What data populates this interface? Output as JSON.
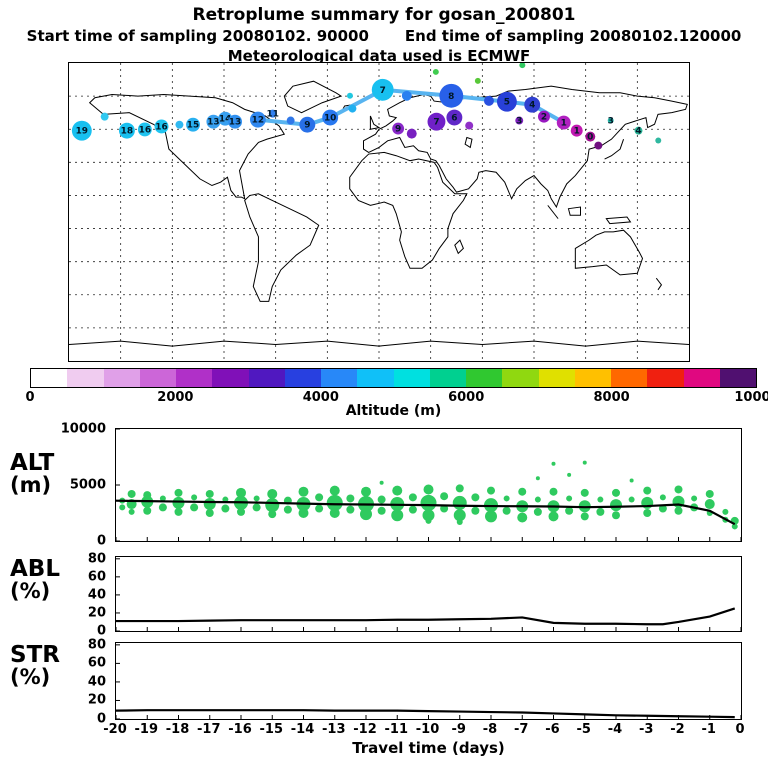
{
  "header": {
    "title": "Retroplume summary for gosan_200801",
    "start_line": "Start time of sampling 20080102. 90000",
    "end_line": "End time of sampling 20080102.120000",
    "met_line": "Meteorological data used is ECMWF"
  },
  "colorbar": {
    "label": "Altitude (m)",
    "min": 0,
    "max": 10000,
    "ticks": [
      "0",
      "2000",
      "4000",
      "6000",
      "8000",
      "10000"
    ],
    "colors": [
      "#ffffff",
      "#f0ccf0",
      "#e0a0e8",
      "#cc66d8",
      "#b030c8",
      "#8010b8",
      "#5018c0",
      "#2840e0",
      "#2888f8",
      "#10c0f8",
      "#00e0e0",
      "#00d090",
      "#30c830",
      "#90d810",
      "#e0e000",
      "#ffc000",
      "#ff6800",
      "#f02010",
      "#e00880",
      "#501070"
    ]
  },
  "panels": [
    {
      "label": "ALT",
      "unit": "(m)"
    },
    {
      "label": "ABL",
      "unit": "(%)"
    },
    {
      "label": "STR",
      "unit": "(%)"
    }
  ],
  "xaxis": {
    "label": "Travel time (days)",
    "min": -20,
    "max": 0,
    "ticks": [
      "-20",
      "-19",
      "-18",
      "-17",
      "-16",
      "-15",
      "-14",
      "-13",
      "-12",
      "-11",
      "-10",
      "-9",
      "-8",
      "-7",
      "-6",
      "-5",
      "-4",
      "-3",
      "-2",
      "-1",
      "0"
    ]
  },
  "chart_data": [
    {
      "type": "scatter",
      "name": "map",
      "title": "Retroplume particle clusters over world map, colored by altitude (m), labeled by travel day",
      "line_color": "#58b4f0",
      "trajectory_line": [
        [
          30.4,
          19.0
        ],
        [
          38.4,
          20.7
        ],
        [
          42.1,
          18.3
        ],
        [
          50.6,
          9.0
        ],
        [
          61.7,
          11.0
        ],
        [
          70.7,
          13.0
        ],
        [
          74.8,
          14.0
        ],
        [
          79.9,
          20.0
        ]
      ],
      "points": [
        [
          1.9,
          22.7,
          10,
          "#18c0f0",
          "19"
        ],
        [
          5.6,
          18.0,
          4,
          "#30c8f0",
          ""
        ],
        [
          9.2,
          22.7,
          8,
          "#18c0f0",
          "18"
        ],
        [
          12.1,
          22.3,
          7,
          "#20c4f0",
          "16"
        ],
        [
          14.8,
          21.3,
          7,
          "#20c4f0",
          "16"
        ],
        [
          17.7,
          20.7,
          4,
          "#30b8f0",
          ""
        ],
        [
          19.9,
          20.7,
          7,
          "#28b0f0",
          "15"
        ],
        [
          23.2,
          19.7,
          7,
          "#38a0f0",
          "13"
        ],
        [
          25.1,
          18.7,
          7,
          "#38a0f0",
          "14"
        ],
        [
          26.7,
          19.7,
          7,
          "#3090f0",
          "13"
        ],
        [
          30.4,
          19.0,
          8,
          "#3088f0",
          "12"
        ],
        [
          32.8,
          17.0,
          4,
          "#3080f0",
          "11"
        ],
        [
          35.7,
          19.3,
          4,
          "#3078e8",
          ""
        ],
        [
          38.4,
          20.7,
          8,
          "#2870e8",
          "9"
        ],
        [
          42.1,
          18.3,
          8,
          "#2878f0",
          "10"
        ],
        [
          45.7,
          15.3,
          4,
          "#20b0f0",
          ""
        ],
        [
          50.6,
          9.0,
          11,
          "#18c0f0",
          "7"
        ],
        [
          54.5,
          11.0,
          5,
          "#2880f0",
          ""
        ],
        [
          61.7,
          11.0,
          12,
          "#2860e8",
          "8"
        ],
        [
          67.8,
          12.7,
          5,
          "#2850e0",
          ""
        ],
        [
          70.7,
          13.0,
          10,
          "#2840d8",
          "5"
        ],
        [
          74.8,
          14.0,
          8,
          "#3040d0",
          "4"
        ],
        [
          53.1,
          22.0,
          6,
          "#8828c8",
          "9"
        ],
        [
          55.3,
          23.7,
          5,
          "#7820c0",
          ""
        ],
        [
          59.3,
          19.7,
          9,
          "#7020c8",
          "7"
        ],
        [
          62.2,
          18.3,
          8,
          "#6028c8",
          "6"
        ],
        [
          64.6,
          21.0,
          4,
          "#9030c8",
          ""
        ],
        [
          72.7,
          19.3,
          4,
          "#8020c0",
          "3"
        ],
        [
          76.7,
          18.0,
          6,
          "#9818c0",
          "2"
        ],
        [
          79.9,
          20.0,
          7,
          "#b020c0",
          "1"
        ],
        [
          82.0,
          22.7,
          6,
          "#c018b0",
          "1"
        ],
        [
          84.2,
          24.7,
          5,
          "#a01090",
          "0"
        ],
        [
          85.5,
          27.7,
          4,
          "#701080",
          ""
        ],
        [
          73.2,
          0.7,
          3,
          "#30c860",
          ""
        ],
        [
          59.2,
          3.0,
          3,
          "#40cc50",
          ""
        ],
        [
          45.3,
          11.0,
          3,
          "#20c8e0",
          ""
        ],
        [
          66.0,
          6.0,
          3,
          "#58c838",
          ""
        ],
        [
          87.5,
          19.3,
          3,
          "#20b8a8",
          "3"
        ],
        [
          92.0,
          22.7,
          4,
          "#28b898",
          "4"
        ],
        [
          95.2,
          26.0,
          3,
          "#30b8a0",
          ""
        ]
      ]
    },
    {
      "type": "scatter+line",
      "name": "alt",
      "title": "ALT (m)",
      "ylim": [
        0,
        10000
      ],
      "yticks": [
        0,
        5000,
        10000
      ],
      "dot_color": "#2fca5f",
      "line": [
        [
          -20,
          3600
        ],
        [
          -19,
          3560
        ],
        [
          -18,
          3520
        ],
        [
          -17,
          3480
        ],
        [
          -16,
          3460
        ],
        [
          -15,
          3400
        ],
        [
          -14,
          3340
        ],
        [
          -13,
          3280
        ],
        [
          -12,
          3260
        ],
        [
          -11,
          3230
        ],
        [
          -10,
          3200
        ],
        [
          -9,
          3150
        ],
        [
          -8,
          3120
        ],
        [
          -7,
          3100
        ],
        [
          -6,
          3080
        ],
        [
          -5,
          3020
        ],
        [
          -4,
          3060
        ],
        [
          -3,
          3120
        ],
        [
          -2,
          3260
        ],
        [
          -1,
          2700
        ],
        [
          -0.2,
          1500
        ]
      ],
      "scatter": [
        [
          -19.8,
          3000,
          3
        ],
        [
          -19.8,
          3600,
          3
        ],
        [
          -19.5,
          4200,
          4
        ],
        [
          -19.5,
          3300,
          5
        ],
        [
          -19.5,
          2600,
          3
        ],
        [
          -19,
          4100,
          4
        ],
        [
          -19,
          3500,
          6
        ],
        [
          -19,
          2700,
          4
        ],
        [
          -18.5,
          3800,
          3
        ],
        [
          -18.5,
          3000,
          4
        ],
        [
          -18,
          4300,
          4
        ],
        [
          -18,
          3400,
          6
        ],
        [
          -18,
          2600,
          4
        ],
        [
          -17.5,
          3900,
          3
        ],
        [
          -17.5,
          3000,
          4
        ],
        [
          -17,
          4200,
          4
        ],
        [
          -17,
          3300,
          6
        ],
        [
          -17,
          2500,
          4
        ],
        [
          -16.5,
          3700,
          3
        ],
        [
          -16.5,
          2900,
          4
        ],
        [
          -16,
          4300,
          5
        ],
        [
          -16,
          3400,
          7
        ],
        [
          -16,
          2600,
          4
        ],
        [
          -15.5,
          3800,
          3
        ],
        [
          -15.5,
          3000,
          4
        ],
        [
          -15,
          4200,
          5
        ],
        [
          -15,
          3200,
          7
        ],
        [
          -15,
          2400,
          4
        ],
        [
          -14.5,
          3600,
          4
        ],
        [
          -14.5,
          2800,
          4
        ],
        [
          -14,
          4400,
          5
        ],
        [
          -14,
          3300,
          7
        ],
        [
          -14,
          2500,
          5
        ],
        [
          -13.5,
          3900,
          4
        ],
        [
          -13.5,
          2900,
          4
        ],
        [
          -13,
          4500,
          5
        ],
        [
          -13,
          3400,
          8
        ],
        [
          -13,
          2500,
          5
        ],
        [
          -12.5,
          3800,
          4
        ],
        [
          -12.5,
          2800,
          4
        ],
        [
          -12,
          4400,
          5
        ],
        [
          -12,
          3300,
          8
        ],
        [
          -12,
          2400,
          6
        ],
        [
          -11.5,
          5200,
          2
        ],
        [
          -11.5,
          3700,
          4
        ],
        [
          -11.5,
          2700,
          4
        ],
        [
          -11,
          4500,
          5
        ],
        [
          -11,
          3300,
          7
        ],
        [
          -11,
          2300,
          6
        ],
        [
          -10.5,
          3900,
          4
        ],
        [
          -10.5,
          2800,
          4
        ],
        [
          -10,
          4600,
          5
        ],
        [
          -10,
          3400,
          8
        ],
        [
          -10,
          2300,
          6
        ],
        [
          -10,
          1800,
          3
        ],
        [
          -9.5,
          4000,
          4
        ],
        [
          -9.5,
          2900,
          4
        ],
        [
          -9,
          4700,
          4
        ],
        [
          -9,
          3400,
          7
        ],
        [
          -9,
          2300,
          6
        ],
        [
          -9,
          1700,
          3
        ],
        [
          -8.5,
          3900,
          4
        ],
        [
          -8.5,
          2700,
          4
        ],
        [
          -8,
          4500,
          4
        ],
        [
          -8,
          3200,
          7
        ],
        [
          -8,
          2200,
          6
        ],
        [
          -7.5,
          3800,
          3
        ],
        [
          -7.5,
          2700,
          4
        ],
        [
          -7,
          4400,
          4
        ],
        [
          -7,
          3100,
          6
        ],
        [
          -7,
          2100,
          5
        ],
        [
          -6.5,
          5600,
          2
        ],
        [
          -6.5,
          3700,
          3
        ],
        [
          -6.5,
          2600,
          4
        ],
        [
          -6,
          6900,
          2
        ],
        [
          -6,
          4400,
          4
        ],
        [
          -6,
          3100,
          6
        ],
        [
          -6,
          2200,
          5
        ],
        [
          -5.5,
          5900,
          2
        ],
        [
          -5.5,
          3800,
          3
        ],
        [
          -5.5,
          2700,
          4
        ],
        [
          -5,
          7000,
          2
        ],
        [
          -5,
          4300,
          4
        ],
        [
          -5,
          3100,
          6
        ],
        [
          -5,
          2200,
          4
        ],
        [
          -4.5,
          3700,
          3
        ],
        [
          -4.5,
          2600,
          4
        ],
        [
          -4,
          4300,
          4
        ],
        [
          -4,
          3200,
          6
        ],
        [
          -4,
          2300,
          4
        ],
        [
          -3.5,
          5400,
          2
        ],
        [
          -3.5,
          3700,
          3
        ],
        [
          -3,
          4500,
          4
        ],
        [
          -3,
          3400,
          6
        ],
        [
          -3,
          2500,
          4
        ],
        [
          -2.5,
          3900,
          3
        ],
        [
          -2.5,
          2900,
          4
        ],
        [
          -2,
          4600,
          4
        ],
        [
          -2,
          3500,
          6
        ],
        [
          -2,
          2700,
          4
        ],
        [
          -1.5,
          3800,
          3
        ],
        [
          -1.5,
          3000,
          4
        ],
        [
          -1,
          4200,
          4
        ],
        [
          -1,
          3300,
          5
        ],
        [
          -1,
          2500,
          3
        ],
        [
          -0.5,
          2600,
          3
        ],
        [
          -0.5,
          1900,
          3
        ],
        [
          -0.2,
          1800,
          4
        ],
        [
          -0.2,
          1300,
          3
        ]
      ]
    },
    {
      "type": "line",
      "name": "abl",
      "title": "ABL (%)",
      "ylim": [
        0,
        82
      ],
      "yticks": [
        0,
        20,
        40,
        60,
        80
      ],
      "line": [
        [
          -20,
          11
        ],
        [
          -19,
          11
        ],
        [
          -18,
          11
        ],
        [
          -17,
          11.5
        ],
        [
          -16,
          12
        ],
        [
          -15,
          12
        ],
        [
          -14,
          12
        ],
        [
          -13,
          12
        ],
        [
          -12,
          12
        ],
        [
          -11,
          12.5
        ],
        [
          -10,
          12.5
        ],
        [
          -9,
          13
        ],
        [
          -8,
          13.5
        ],
        [
          -7,
          15
        ],
        [
          -6,
          9
        ],
        [
          -5,
          8
        ],
        [
          -4,
          8
        ],
        [
          -3,
          7.5
        ],
        [
          -2.5,
          7.5
        ],
        [
          -2,
          10
        ],
        [
          -1,
          16
        ],
        [
          -0.2,
          25
        ]
      ]
    },
    {
      "type": "line",
      "name": "str",
      "title": "STR (%)",
      "ylim": [
        0,
        82
      ],
      "yticks": [
        0,
        20,
        40,
        60,
        80
      ],
      "line": [
        [
          -20,
          9
        ],
        [
          -19,
          9.5
        ],
        [
          -18,
          9.5
        ],
        [
          -17,
          9.5
        ],
        [
          -16,
          9.5
        ],
        [
          -15,
          9.5
        ],
        [
          -14,
          9.5
        ],
        [
          -13,
          9
        ],
        [
          -12,
          9
        ],
        [
          -11,
          9
        ],
        [
          -10,
          8.5
        ],
        [
          -9,
          8
        ],
        [
          -8,
          7.5
        ],
        [
          -7,
          7
        ],
        [
          -6,
          6
        ],
        [
          -5,
          5
        ],
        [
          -4,
          4
        ],
        [
          -3,
          3.5
        ],
        [
          -2,
          3
        ],
        [
          -1,
          2.5
        ],
        [
          -0.2,
          2
        ]
      ]
    }
  ]
}
